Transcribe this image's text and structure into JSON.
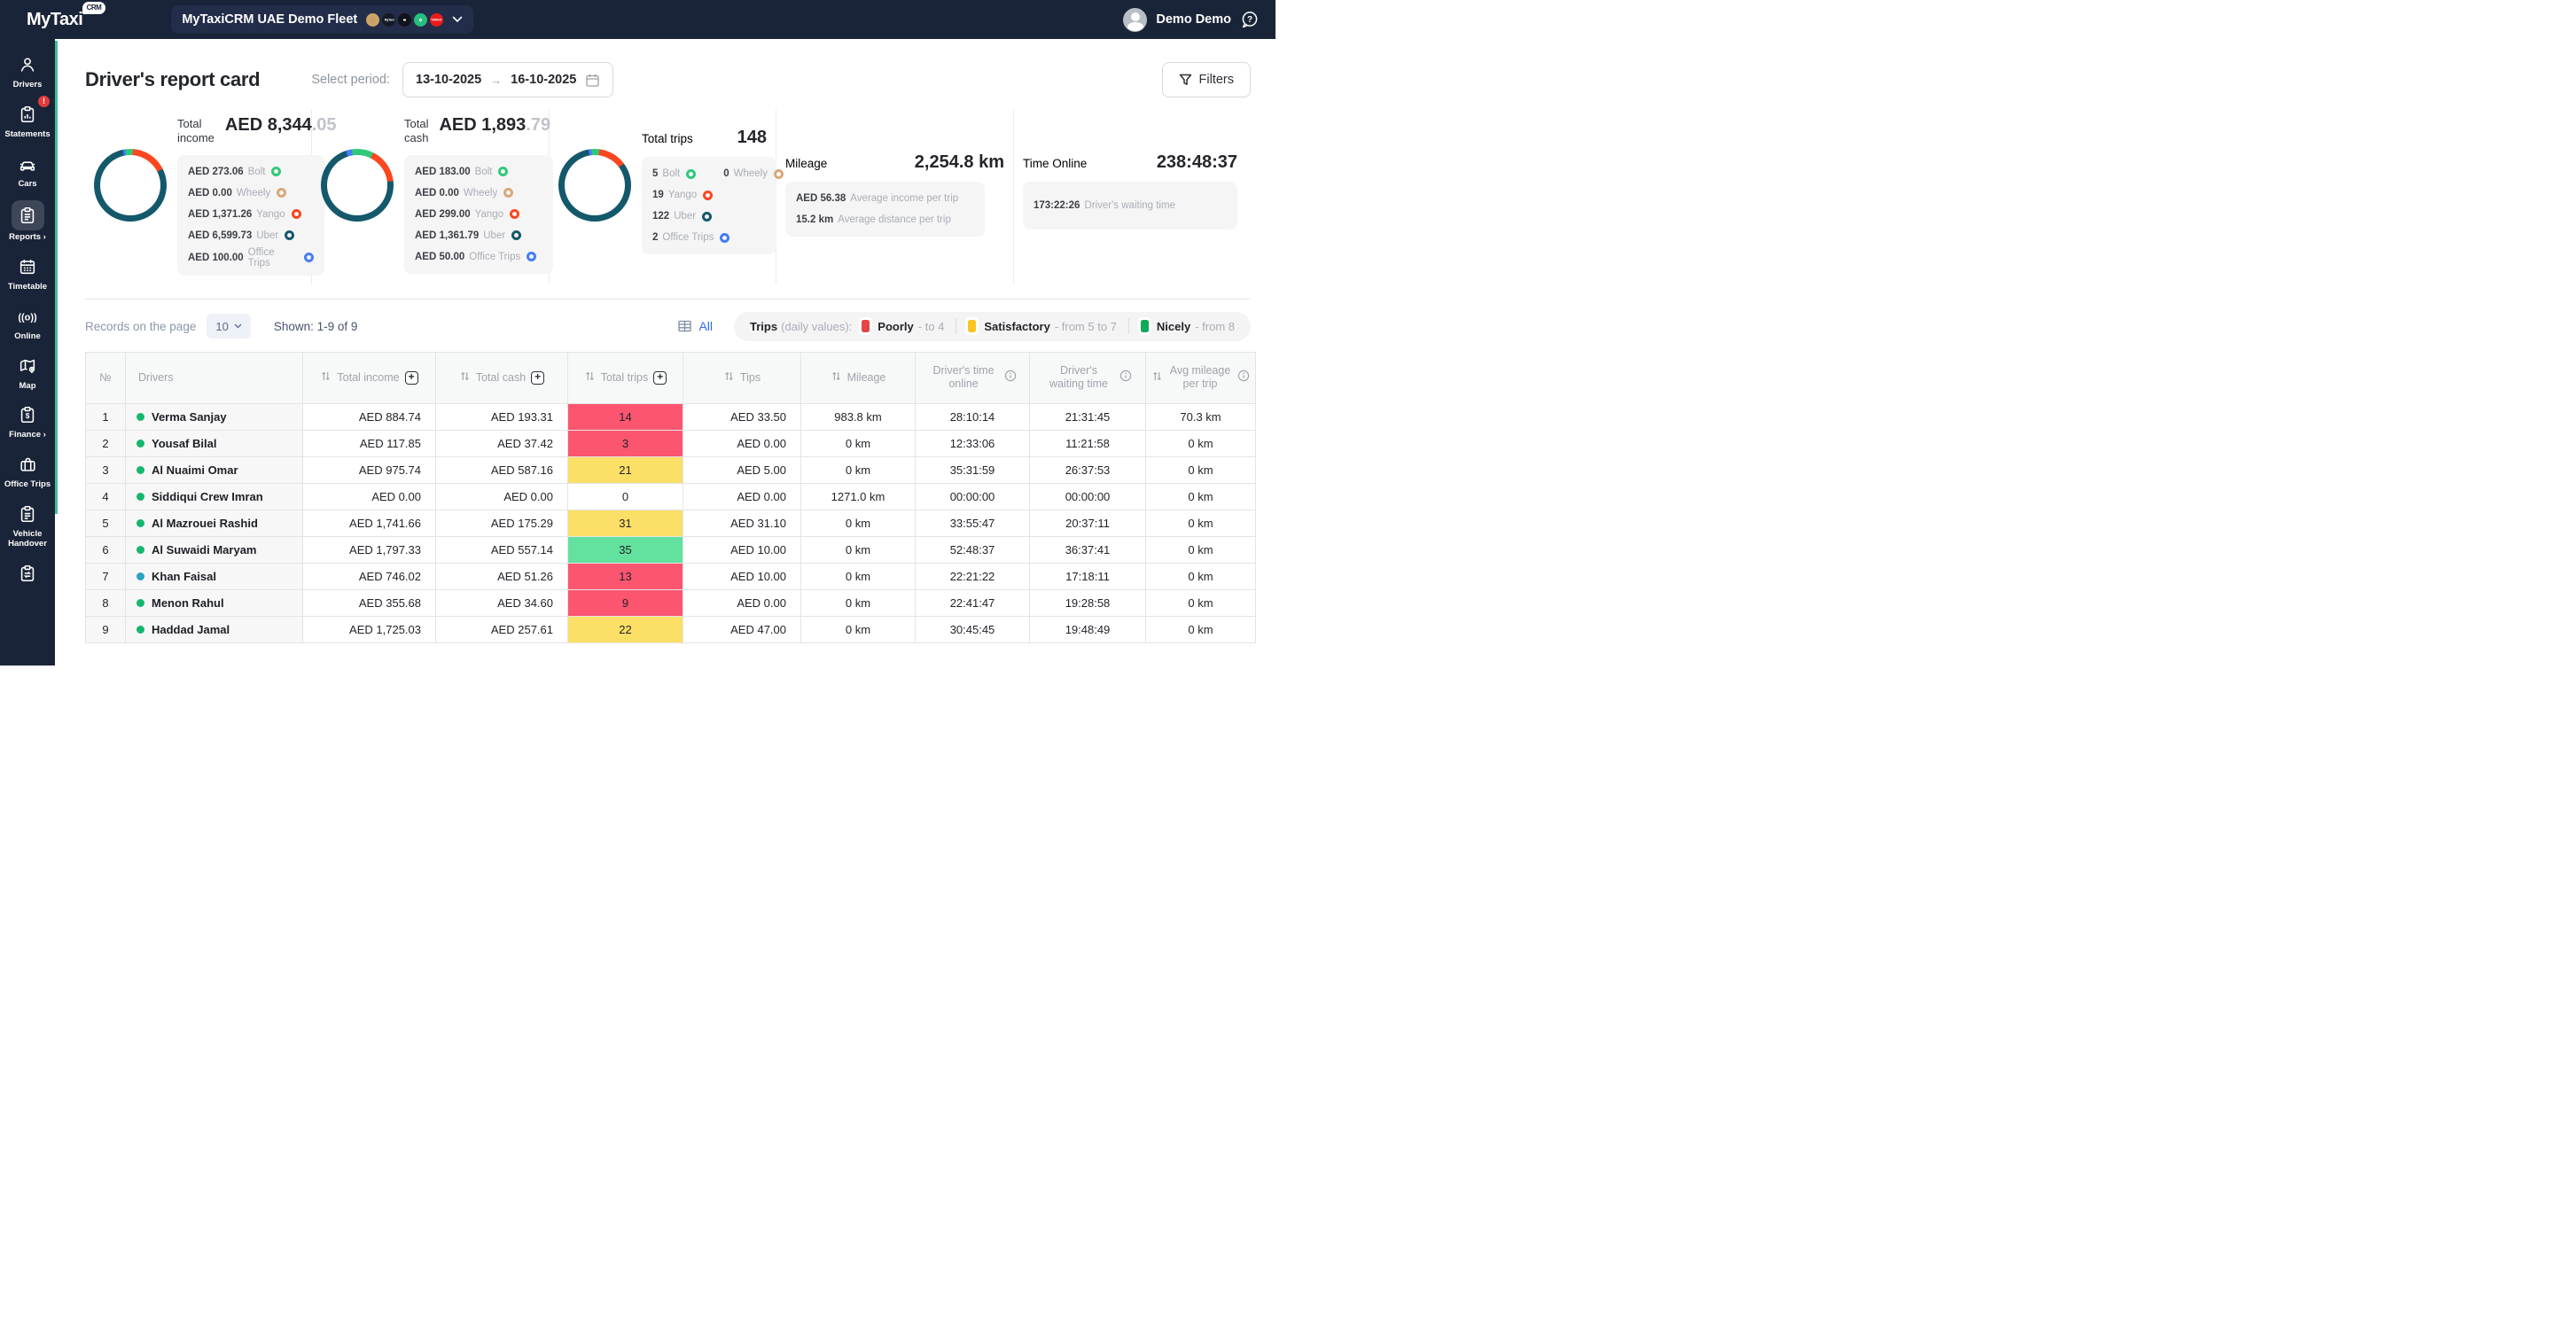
{
  "header": {
    "brand": "MyTaxi",
    "brand_badge": "CRM",
    "fleet": {
      "name": "MyTaxiCRM UAE Demo Fleet",
      "platforms": [
        {
          "name": "coin",
          "bg": "#cda368",
          "glyph": ""
        },
        {
          "name": "mytaxi",
          "bg": "#141a26",
          "glyph": "MyTaxi"
        },
        {
          "name": "uber",
          "bg": "#10131a",
          "glyph": ""
        },
        {
          "name": "careem",
          "bg": "#27bd7e",
          "glyph": ""
        },
        {
          "name": "yango",
          "bg": "#e81c1c",
          "glyph": "YANGO"
        }
      ]
    },
    "user_name": "Demo Demo"
  },
  "sidebar": {
    "items": [
      {
        "label": "Drivers",
        "icon": "drivers"
      },
      {
        "label": "Statements",
        "icon": "statements",
        "badge": "!"
      },
      {
        "label": "Cars",
        "icon": "cars"
      },
      {
        "label": "Reports",
        "icon": "reports",
        "active": true,
        "arrow": "›"
      },
      {
        "label": "Timetable",
        "icon": "timetable"
      },
      {
        "label": "Online",
        "icon": "online"
      },
      {
        "label": "Map",
        "icon": "map"
      },
      {
        "label": "Finance",
        "icon": "finance",
        "arrow": "›"
      },
      {
        "label": "Office Trips",
        "icon": "office"
      },
      {
        "label": "Vehicle Handover",
        "icon": "handover"
      },
      {
        "label": "",
        "icon": "handover2"
      }
    ]
  },
  "page": {
    "title": "Driver's report card",
    "period_label": "Select period:",
    "date_from": "13-10-2025",
    "date_to": "16-10-2025",
    "filters_label": "Filters"
  },
  "platform_colors": {
    "bolt": "#30c979",
    "wheely": "#d8a878",
    "yango": "#fb471f",
    "uber": "#14586c",
    "office": "#437ef7"
  },
  "cards": {
    "income": {
      "label": "Total income",
      "value_main": "AED 8,344",
      "value_fraction": ".05",
      "donut": {
        "start": -12,
        "segments": [
          {
            "color": "#437ef7",
            "pct": 1.2
          },
          {
            "color": "#30c979",
            "pct": 3.3
          },
          {
            "color": "#fb471f",
            "pct": 16.4
          },
          {
            "color": "#14586c",
            "pct": 79.1
          }
        ]
      },
      "items": [
        [
          {
            "value": "AED 273.06",
            "name": "Bolt",
            "color": "#30c979"
          }
        ],
        [
          {
            "value": "AED 0.00",
            "name": "Wheely",
            "color": "#d8a878"
          }
        ],
        [
          {
            "value": "AED 1,371.26",
            "name": "Yango",
            "color": "#fb471f"
          }
        ],
        [
          {
            "value": "AED 6,599.73",
            "name": "Uber",
            "color": "#14586c"
          }
        ],
        [
          {
            "value": "AED 100.00",
            "name": "Office Trips",
            "color": "#437ef7"
          }
        ]
      ]
    },
    "cash": {
      "label": "Total cash",
      "value_main": "AED 1,893",
      "value_fraction": ".79",
      "donut": {
        "start": -18,
        "segments": [
          {
            "color": "#437ef7",
            "pct": 2.6
          },
          {
            "color": "#30c979",
            "pct": 9.7
          },
          {
            "color": "#fb471f",
            "pct": 15.8
          },
          {
            "color": "#14586c",
            "pct": 71.9
          }
        ]
      },
      "items": [
        [
          {
            "value": "AED 183.00",
            "name": "Bolt",
            "color": "#30c979"
          }
        ],
        [
          {
            "value": "AED 0.00",
            "name": "Wheely",
            "color": "#d8a878"
          }
        ],
        [
          {
            "value": "AED 299.00",
            "name": "Yango",
            "color": "#fb471f"
          }
        ],
        [
          {
            "value": "AED 1,361.79",
            "name": "Uber",
            "color": "#14586c"
          }
        ],
        [
          {
            "value": "AED 50.00",
            "name": "Office Trips",
            "color": "#437ef7"
          }
        ]
      ]
    },
    "trips": {
      "label": "Total trips",
      "value": "148",
      "donut": {
        "start": -10,
        "segments": [
          {
            "color": "#437ef7",
            "pct": 1.4
          },
          {
            "color": "#30c979",
            "pct": 3.4
          },
          {
            "color": "#fb471f",
            "pct": 12.8
          },
          {
            "color": "#14586c",
            "pct": 82.4
          }
        ]
      },
      "items": [
        [
          {
            "value": "5",
            "name": "Bolt",
            "color": "#30c979"
          },
          {
            "value": "0",
            "name": "Wheely",
            "color": "#d8a878",
            "gap": true
          }
        ],
        [
          {
            "value": "19",
            "name": "Yango",
            "color": "#fb471f"
          }
        ],
        [
          {
            "value": "122",
            "name": "Uber",
            "color": "#14586c"
          }
        ],
        [
          {
            "value": "2",
            "name": "Office Trips",
            "color": "#437ef7"
          }
        ]
      ]
    },
    "mileage": {
      "label": "Mileage",
      "value": "2,254.8 km",
      "items": [
        [
          {
            "value": "AED 56.38",
            "name": "Average income per trip"
          }
        ],
        [
          {
            "value": "15.2 km",
            "name": "Average distance per trip"
          }
        ]
      ]
    },
    "time_online": {
      "label": "Time Online",
      "value": "238:48:37",
      "items": [
        [
          {
            "value": "173:22:26",
            "name": "Driver's waiting time"
          }
        ]
      ]
    }
  },
  "toolbar": {
    "records_label": "Records on the page",
    "records_value": "10",
    "shown": "Shown: 1-9 of 9",
    "all_label": "All",
    "legend": {
      "title": "Trips",
      "subtitle": "(daily values):",
      "items": [
        {
          "label": "Poorly",
          "range": "- to 4",
          "color": "#e64545"
        },
        {
          "label": "Satisfactory",
          "range": "- from 5 to 7",
          "color": "#fbc423"
        },
        {
          "label": "Nicely",
          "range": "- from 8",
          "color": "#0fa95c"
        }
      ]
    }
  },
  "table": {
    "columns": [
      {
        "key": "num",
        "label": "№"
      },
      {
        "key": "driver",
        "label": "Drivers"
      },
      {
        "key": "income",
        "label": "Total income",
        "sort": true,
        "plus": true
      },
      {
        "key": "cash",
        "label": "Total cash",
        "sort": true,
        "plus": true
      },
      {
        "key": "trips",
        "label": "Total trips",
        "sort": true,
        "plus": true
      },
      {
        "key": "tips",
        "label": "Tips",
        "sort": true
      },
      {
        "key": "mileage",
        "label": "Mileage",
        "sort": true
      },
      {
        "key": "online",
        "label": "Driver's time online",
        "info": true
      },
      {
        "key": "waiting",
        "label": "Driver's waiting time",
        "info": true
      },
      {
        "key": "avg",
        "label": "Avg mileage per trip",
        "sort": true,
        "info": true
      }
    ],
    "trip_colors": {
      "poor": "#fb5570",
      "satisfactory": "#fbdf67",
      "nice": "#63e19e",
      "none": "#ffffff"
    },
    "rows": [
      {
        "num": "1",
        "driver": "Verma Sanjay",
        "status_color": "#15b76c",
        "income": "AED 884.74",
        "cash": "AED 193.31",
        "trips": "14",
        "trips_level": "poor",
        "tips": "AED 33.50",
        "mileage": "983.8 km",
        "online": "28:10:14",
        "waiting": "21:31:45",
        "avg": "70.3 km"
      },
      {
        "num": "2",
        "driver": "Yousaf Bilal",
        "status_color": "#15b76c",
        "income": "AED 117.85",
        "cash": "AED 37.42",
        "trips": "3",
        "trips_level": "poor",
        "tips": "AED 0.00",
        "mileage": "0 km",
        "online": "12:33:06",
        "waiting": "11:21:58",
        "avg": "0 km"
      },
      {
        "num": "3",
        "driver": "Al Nuaimi Omar",
        "status_color": "#15b76c",
        "income": "AED 975.74",
        "cash": "AED 587.16",
        "trips": "21",
        "trips_level": "satisfactory",
        "tips": "AED 5.00",
        "mileage": "0 km",
        "online": "35:31:59",
        "waiting": "26:37:53",
        "avg": "0 km"
      },
      {
        "num": "4",
        "driver": "Siddiqui Crew Imran",
        "status_color": "#15b76c",
        "income": "AED 0.00",
        "cash": "AED 0.00",
        "trips": "0",
        "trips_level": "none",
        "tips": "AED 0.00",
        "mileage": "1271.0 km",
        "online": "00:00:00",
        "waiting": "00:00:00",
        "avg": "0 km"
      },
      {
        "num": "5",
        "driver": "Al Mazrouei Rashid",
        "status_color": "#15b76c",
        "income": "AED 1,741.66",
        "cash": "AED 175.29",
        "trips": "31",
        "trips_level": "satisfactory",
        "tips": "AED 31.10",
        "mileage": "0 km",
        "online": "33:55:47",
        "waiting": "20:37:11",
        "avg": "0 km"
      },
      {
        "num": "6",
        "driver": "Al Suwaidi Maryam",
        "status_color": "#15b76c",
        "income": "AED 1,797.33",
        "cash": "AED 557.14",
        "trips": "35",
        "trips_level": "nice",
        "tips": "AED 10.00",
        "mileage": "0 km",
        "online": "52:48:37",
        "waiting": "36:37:41",
        "avg": "0 km"
      },
      {
        "num": "7",
        "driver": "Khan Faisal",
        "status_color": "#29a3c2",
        "income": "AED 746.02",
        "cash": "AED 51.26",
        "trips": "13",
        "trips_level": "poor",
        "tips": "AED 10.00",
        "mileage": "0 km",
        "online": "22:21:22",
        "waiting": "17:18:11",
        "avg": "0 km"
      },
      {
        "num": "8",
        "driver": "Menon Rahul",
        "status_color": "#15b76c",
        "income": "AED 355.68",
        "cash": "AED 34.60",
        "trips": "9",
        "trips_level": "poor",
        "tips": "AED 0.00",
        "mileage": "0 km",
        "online": "22:41:47",
        "waiting": "19:28:58",
        "avg": "0 km"
      },
      {
        "num": "9",
        "driver": "Haddad Jamal",
        "status_color": "#15b76c",
        "income": "AED 1,725.03",
        "cash": "AED 257.61",
        "trips": "22",
        "trips_level": "satisfactory",
        "tips": "AED 47.00",
        "mileage": "0 km",
        "online": "30:45:45",
        "waiting": "19:48:49",
        "avg": "0 km"
      }
    ]
  }
}
